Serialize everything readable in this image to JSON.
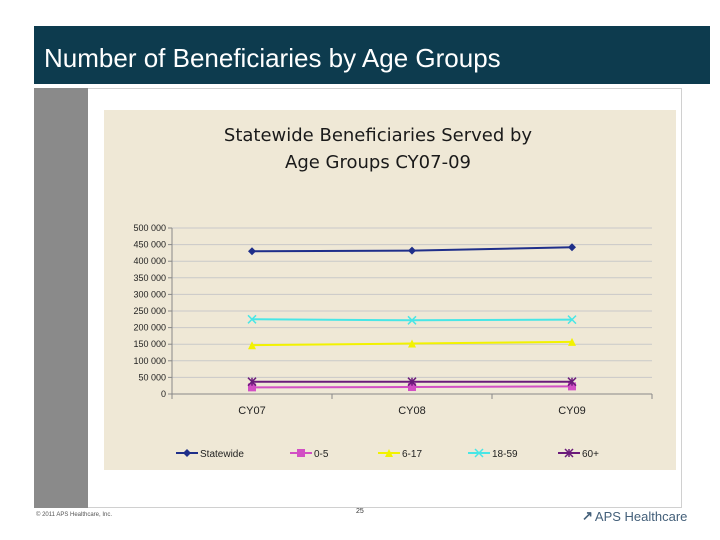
{
  "slide": {
    "title": "Number of Beneficiaries by Age Groups",
    "footer_copyright": "© 2011 APS Healthcare, Inc.",
    "page_number": "25",
    "logo_text": "APS Healthcare"
  },
  "colors": {
    "header_bg": "#0d3b4e",
    "chart_bg": "#efe8d6",
    "statewide": "#1f2f8a",
    "age_0_5": "#d24fc4",
    "age_6_17": "#f2f200",
    "age_18_59": "#48e6e6",
    "age_60_plus": "#6a1a7a"
  },
  "chart_data": {
    "type": "line",
    "title_line1": "Statewide Beneficiaries Served by",
    "title_line2": "Age Groups CY07-09",
    "categories": [
      "CY07",
      "CY08",
      "CY09"
    ],
    "ylim": [
      0,
      500000
    ],
    "y_ticks": [
      0,
      50000,
      100000,
      150000,
      200000,
      250000,
      300000,
      350000,
      400000,
      450000,
      500000
    ],
    "y_tick_labels": [
      "0",
      "50 000",
      "100 000",
      "150 000",
      "200 000",
      "250 000",
      "300 000",
      "350 000",
      "400 000",
      "450 000",
      "500 000"
    ],
    "grid": true,
    "legend_position": "bottom",
    "series": [
      {
        "name": "Statewide",
        "key": "statewide",
        "marker": "diamond",
        "values": [
          430000,
          432000,
          442000
        ]
      },
      {
        "name": "0-5",
        "key": "age_0_5",
        "marker": "square",
        "values": [
          20000,
          21000,
          23000
        ]
      },
      {
        "name": "6-17",
        "key": "age_6_17",
        "marker": "triangle",
        "values": [
          147000,
          152000,
          157000
        ]
      },
      {
        "name": "18-59",
        "key": "age_18_59",
        "marker": "x",
        "values": [
          225000,
          222000,
          224000
        ]
      },
      {
        "name": "60+",
        "key": "age_60_plus",
        "marker": "star",
        "values": [
          37000,
          37000,
          37000
        ]
      }
    ]
  }
}
